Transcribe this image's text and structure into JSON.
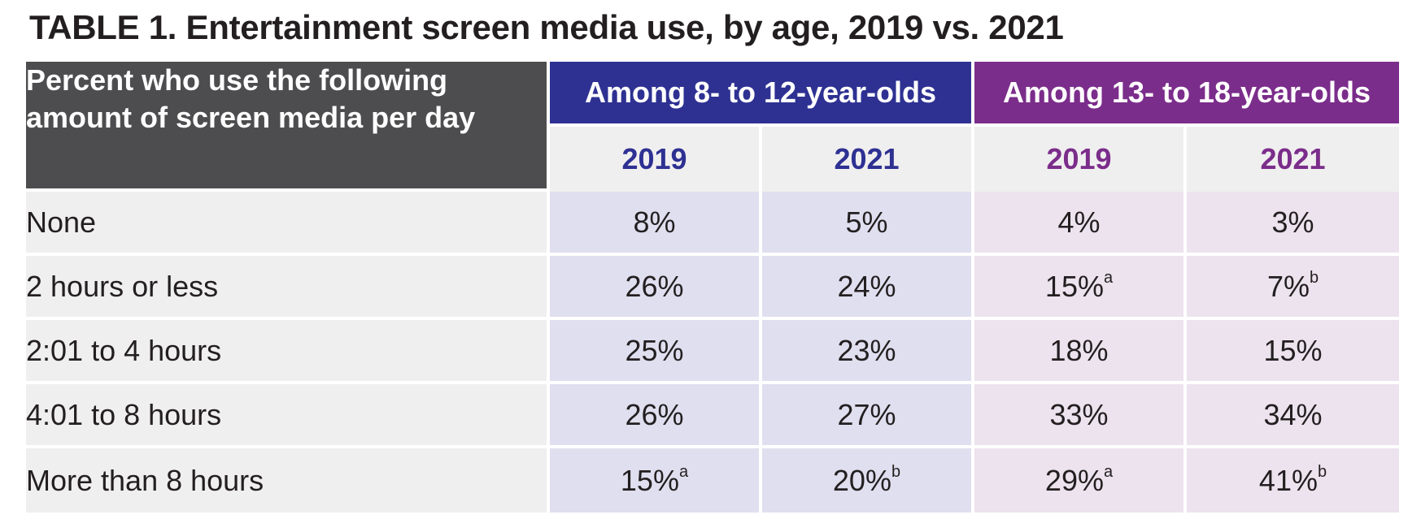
{
  "title": "TABLE 1. Entertainment screen media use, by age, 2019 vs. 2021",
  "header": {
    "label_line1": "Percent who use the following",
    "label_line2": "amount of screen media per day",
    "group_a": "Among 8- to 12-year-olds",
    "group_b": "Among 13- to 18-year-olds",
    "years": [
      "2019",
      "2021",
      "2019",
      "2021"
    ]
  },
  "colors": {
    "group_a": "#2e3192",
    "group_b": "#7b2d8b",
    "label_header": "#4d4d4f"
  },
  "rows": [
    {
      "label": "None",
      "cells": [
        {
          "v": "8%",
          "sup": ""
        },
        {
          "v": "5%",
          "sup": ""
        },
        {
          "v": "4%",
          "sup": ""
        },
        {
          "v": "3%",
          "sup": ""
        }
      ]
    },
    {
      "label": "2 hours or less",
      "cells": [
        {
          "v": "26%",
          "sup": ""
        },
        {
          "v": "24%",
          "sup": ""
        },
        {
          "v": "15%",
          "sup": "a"
        },
        {
          "v": "7%",
          "sup": "b"
        }
      ]
    },
    {
      "label": "2:01 to 4 hours",
      "cells": [
        {
          "v": "25%",
          "sup": ""
        },
        {
          "v": "23%",
          "sup": ""
        },
        {
          "v": "18%",
          "sup": ""
        },
        {
          "v": "15%",
          "sup": ""
        }
      ]
    },
    {
      "label": "4:01 to 8 hours",
      "cells": [
        {
          "v": "26%",
          "sup": ""
        },
        {
          "v": "27%",
          "sup": ""
        },
        {
          "v": "33%",
          "sup": ""
        },
        {
          "v": "34%",
          "sup": ""
        }
      ]
    },
    {
      "label": "More than 8 hours",
      "cells": [
        {
          "v": "15%",
          "sup": "a"
        },
        {
          "v": "20%",
          "sup": "b"
        },
        {
          "v": "29%",
          "sup": "a"
        },
        {
          "v": "41%",
          "sup": "b"
        }
      ]
    }
  ]
}
